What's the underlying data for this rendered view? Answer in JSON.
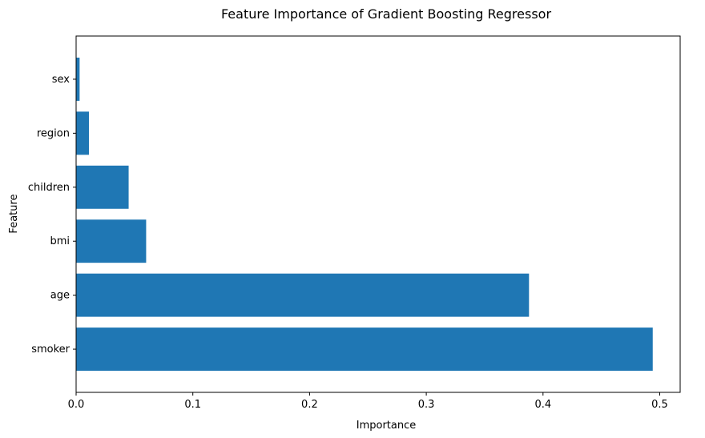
{
  "chart_data": {
    "type": "bar",
    "orientation": "horizontal",
    "title": "Feature Importance of Gradient Boosting Regressor",
    "xlabel": "Importance",
    "ylabel": "Feature",
    "categories": [
      "smoker",
      "age",
      "bmi",
      "children",
      "region",
      "sex"
    ],
    "values": [
      0.494,
      0.388,
      0.06,
      0.045,
      0.011,
      0.003
    ],
    "xlim": [
      0,
      0.5175
    ],
    "xticks": [
      "0.0",
      "0.1",
      "0.2",
      "0.3",
      "0.4",
      "0.5"
    ],
    "xtick_values": [
      0,
      0.1,
      0.2,
      0.3,
      0.4,
      0.5
    ],
    "bar_color": "#1f77b4",
    "grid": false
  }
}
